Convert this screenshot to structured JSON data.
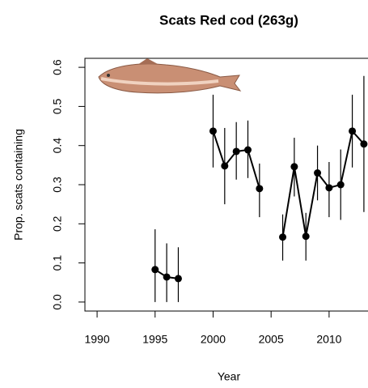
{
  "chart_data": {
    "type": "line",
    "title": "Scats Red cod (263g)",
    "x_label": "Year",
    "y_label": "Prop. scats containing",
    "x": [
      1995,
      1996,
      1997,
      1998,
      1999,
      2000,
      2001,
      2002,
      2003,
      2004,
      2005,
      2006,
      2007,
      2008,
      2009,
      2010,
      2011,
      2012,
      2013
    ],
    "series": [
      {
        "color": "#000000",
        "values": [
          0.083,
          0.064,
          0.06,
          null,
          null,
          0.437,
          0.348,
          0.385,
          0.389,
          0.29,
          null,
          0.166,
          0.346,
          0.168,
          0.33,
          0.292,
          0.3,
          0.437,
          0.404
        ],
        "lower": [
          0,
          0,
          0,
          null,
          null,
          0.344,
          0.25,
          0.313,
          0.317,
          0.217,
          null,
          0.106,
          0.27,
          0.106,
          0.26,
          0.217,
          0.21,
          0.344,
          0.23
        ],
        "upper": [
          0.186,
          0.15,
          0.14,
          null,
          null,
          0.53,
          0.445,
          0.46,
          0.464,
          0.354,
          null,
          0.224,
          0.42,
          0.228,
          0.4,
          0.358,
          0.39,
          0.53,
          0.578
        ]
      }
    ],
    "xlim": [
      1988.95,
      2014.4
    ],
    "xticks": [
      1990,
      1995,
      2000,
      2005,
      2010
    ],
    "ylim": [
      -0.023,
      0.623
    ],
    "yticks": [
      {
        "value": 0,
        "label": "0.0"
      },
      0.1,
      0.2,
      0.3,
      0.4,
      0.5,
      0.6
    ]
  }
}
